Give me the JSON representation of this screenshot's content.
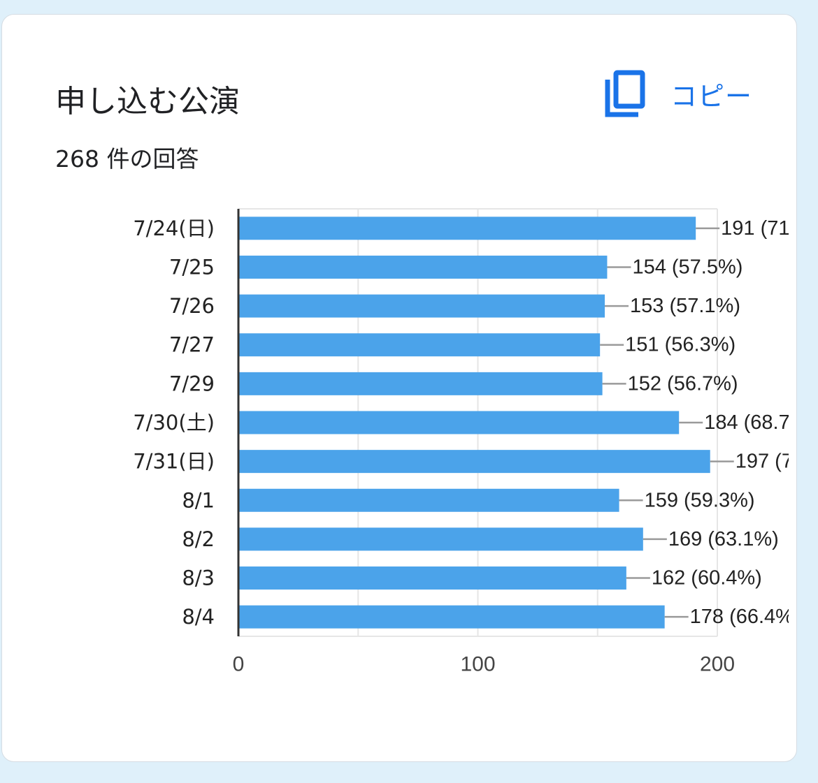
{
  "card": {
    "title": "申し込む公演",
    "response_count": "268 件の回答",
    "copy_label": "コピー",
    "copy_icon": "copy-icon"
  },
  "colors": {
    "bar": "#4ba3ea",
    "accent": "#1a73e8",
    "grid": "#e6e6e6",
    "axis": "#333333",
    "leader": "#9a9a9a",
    "text": "#222222"
  },
  "chart_data": {
    "type": "bar",
    "orientation": "horizontal",
    "categories": [
      "7/24(日)",
      "7/25",
      "7/26",
      "7/27",
      "7/29",
      "7/30(土)",
      "7/31(日)",
      "8/1",
      "8/2",
      "8/3",
      "8/4"
    ],
    "values": [
      191,
      154,
      153,
      151,
      152,
      184,
      197,
      159,
      169,
      162,
      178
    ],
    "data_labels": [
      "191 (71",
      "154 (57.5%)",
      "153 (57.1%)",
      "151 (56.3%)",
      "152 (56.7%)",
      "184 (68.7",
      "197 (7",
      "159 (59.3%)",
      "169 (63.1%)",
      "162 (60.4%)",
      "178 (66.4%"
    ],
    "xlim": [
      0,
      200
    ],
    "x_ticks": [
      "0",
      "100",
      "200"
    ],
    "grid": true
  }
}
